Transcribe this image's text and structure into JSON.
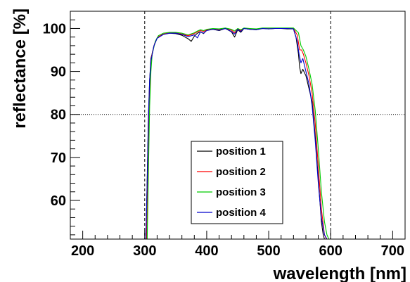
{
  "chart_data": {
    "type": "line",
    "title": "",
    "xlabel": "wavelength [nm]",
    "ylabel": "reflectance [%]",
    "xlim": [
      180,
      720
    ],
    "ylim": [
      51,
      104
    ],
    "x_ticks": [
      200,
      300,
      400,
      500,
      600,
      700
    ],
    "y_ticks": [
      60,
      70,
      80,
      90,
      100
    ],
    "grid": false,
    "reference_lines": {
      "vertical": [
        300,
        600
      ],
      "horizontal": [
        80
      ]
    },
    "legend": {
      "position": "center-bottom"
    },
    "series": [
      {
        "name": "position 1",
        "color": "#000000",
        "x": [
          302,
          304,
          306,
          308,
          310,
          315,
          320,
          330,
          340,
          350,
          360,
          370,
          375,
          380,
          385,
          390,
          395,
          400,
          410,
          420,
          430,
          440,
          445,
          450,
          455,
          460,
          470,
          480,
          490,
          500,
          510,
          520,
          530,
          540,
          544,
          548,
          550,
          552,
          555,
          560,
          565,
          570,
          575,
          580,
          585,
          588,
          590
        ],
        "y": [
          51,
          65,
          80,
          88,
          93,
          96,
          97.8,
          98.6,
          98.9,
          98.8,
          98.4,
          97.6,
          97,
          98.2,
          98.9,
          99.2,
          98.8,
          99.6,
          99.8,
          99.5,
          100,
          99.2,
          98,
          99.7,
          99.1,
          100,
          99.8,
          99.7,
          100,
          99.9,
          100,
          100,
          99.9,
          99.9,
          98,
          94,
          91,
          89.5,
          90.5,
          89,
          86,
          83,
          75,
          65,
          55,
          52,
          51
        ]
      },
      {
        "name": "position 2",
        "color": "#ff0000",
        "x": [
          303,
          305,
          307,
          309,
          311,
          316,
          321,
          330,
          340,
          350,
          360,
          370,
          380,
          385,
          390,
          395,
          400,
          410,
          420,
          430,
          440,
          445,
          450,
          455,
          460,
          470,
          480,
          490,
          500,
          510,
          520,
          530,
          540,
          546,
          550,
          553,
          556,
          560,
          565,
          570,
          575,
          580,
          585,
          590,
          593
        ],
        "y": [
          51,
          66,
          81,
          89,
          93.5,
          96.5,
          98,
          98.7,
          99,
          99,
          98.7,
          98.3,
          98.8,
          99.2,
          99.5,
          99.3,
          99.6,
          99.9,
          99.7,
          100,
          99.6,
          99,
          99.9,
          99.5,
          100,
          99.9,
          99.8,
          100,
          100,
          100,
          100,
          100,
          100,
          98.5,
          95,
          95,
          94,
          92,
          89,
          85,
          78,
          68,
          58,
          52,
          51
        ]
      },
      {
        "name": "position 3",
        "color": "#00cc00",
        "x": [
          304,
          306,
          308,
          310,
          312,
          317,
          322,
          330,
          340,
          350,
          360,
          370,
          380,
          385,
          390,
          395,
          400,
          410,
          420,
          430,
          440,
          445,
          450,
          455,
          460,
          470,
          480,
          490,
          500,
          510,
          520,
          530,
          540,
          548,
          552,
          556,
          560,
          565,
          570,
          575,
          580,
          585,
          590,
          594,
          597
        ],
        "y": [
          51,
          67,
          82,
          90,
          94,
          97,
          98.3,
          98.9,
          99.1,
          99.1,
          98.9,
          98.5,
          99,
          99.4,
          99.7,
          99.5,
          99.8,
          100,
          99.9,
          100.1,
          99.8,
          99.4,
          100,
          99.7,
          100.1,
          100,
          99.9,
          100.1,
          100.1,
          100.1,
          100.1,
          100.1,
          100.1,
          99,
          96,
          95,
          93.5,
          90.5,
          87,
          81,
          72,
          62,
          55,
          52,
          51
        ]
      },
      {
        "name": "position 4",
        "color": "#0000cc",
        "x": [
          302,
          304,
          306,
          308,
          310,
          315,
          320,
          330,
          340,
          350,
          360,
          370,
          380,
          385,
          390,
          395,
          400,
          410,
          420,
          430,
          440,
          445,
          450,
          455,
          460,
          470,
          480,
          490,
          500,
          510,
          520,
          530,
          540,
          546,
          549,
          552,
          555,
          560,
          565,
          570,
          575,
          580,
          585,
          590,
          594
        ],
        "y": [
          51,
          64,
          79,
          88,
          92.5,
          96,
          97.7,
          98.6,
          98.9,
          98.9,
          98.6,
          98.1,
          98.5,
          97.8,
          99.2,
          98.9,
          99.5,
          99.8,
          99.6,
          100,
          99.3,
          98.7,
          99.8,
          99.3,
          100,
          99.8,
          99.7,
          100,
          99.9,
          100,
          100,
          100,
          99.9,
          97,
          94,
          92,
          93,
          90,
          87,
          82,
          74,
          64,
          56,
          52,
          51
        ]
      }
    ]
  }
}
